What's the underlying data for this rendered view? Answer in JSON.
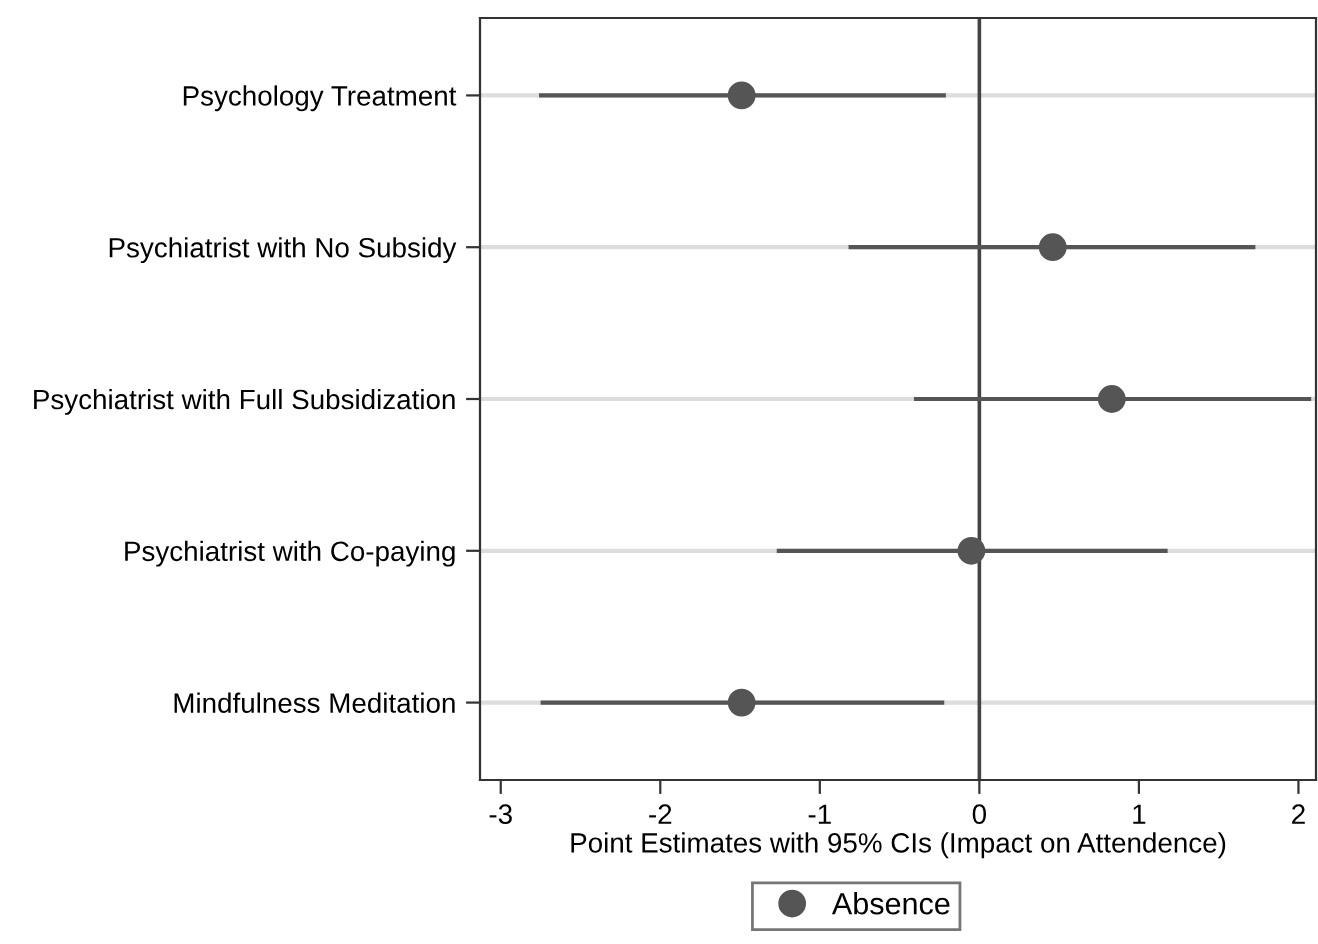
{
  "chart_data": {
    "type": "scatter",
    "orientation": "horizontal",
    "xlabel": "Point Estimates with 95% CIs (Impact on Attendence)",
    "categories": [
      "Psychology Treatment",
      "Psychiatrist with No Subsidy",
      "Psychiatrist with Full Subsidization",
      "Psychiatrist with Co-paying",
      "Mindfulness Meditation"
    ],
    "series": [
      {
        "name": "Absence",
        "color": "#555555",
        "values": [
          -1.49,
          0.46,
          0.83,
          -0.05,
          -1.49
        ],
        "errors": [
          [
            -2.76,
            -0.21
          ],
          [
            -0.82,
            1.73
          ],
          [
            -0.41,
            2.08
          ],
          [
            -1.27,
            1.18
          ],
          [
            -2.75,
            -0.22
          ]
        ]
      }
    ],
    "xlim": [
      -3.13,
      2.11
    ],
    "xticks": [
      -3,
      -2,
      -1,
      0,
      1,
      2
    ],
    "ref_lines": [
      {
        "axis": "x",
        "value": 0,
        "color": "#444444"
      }
    ],
    "grid": "y",
    "legend": "bottom",
    "marker": "circle"
  }
}
